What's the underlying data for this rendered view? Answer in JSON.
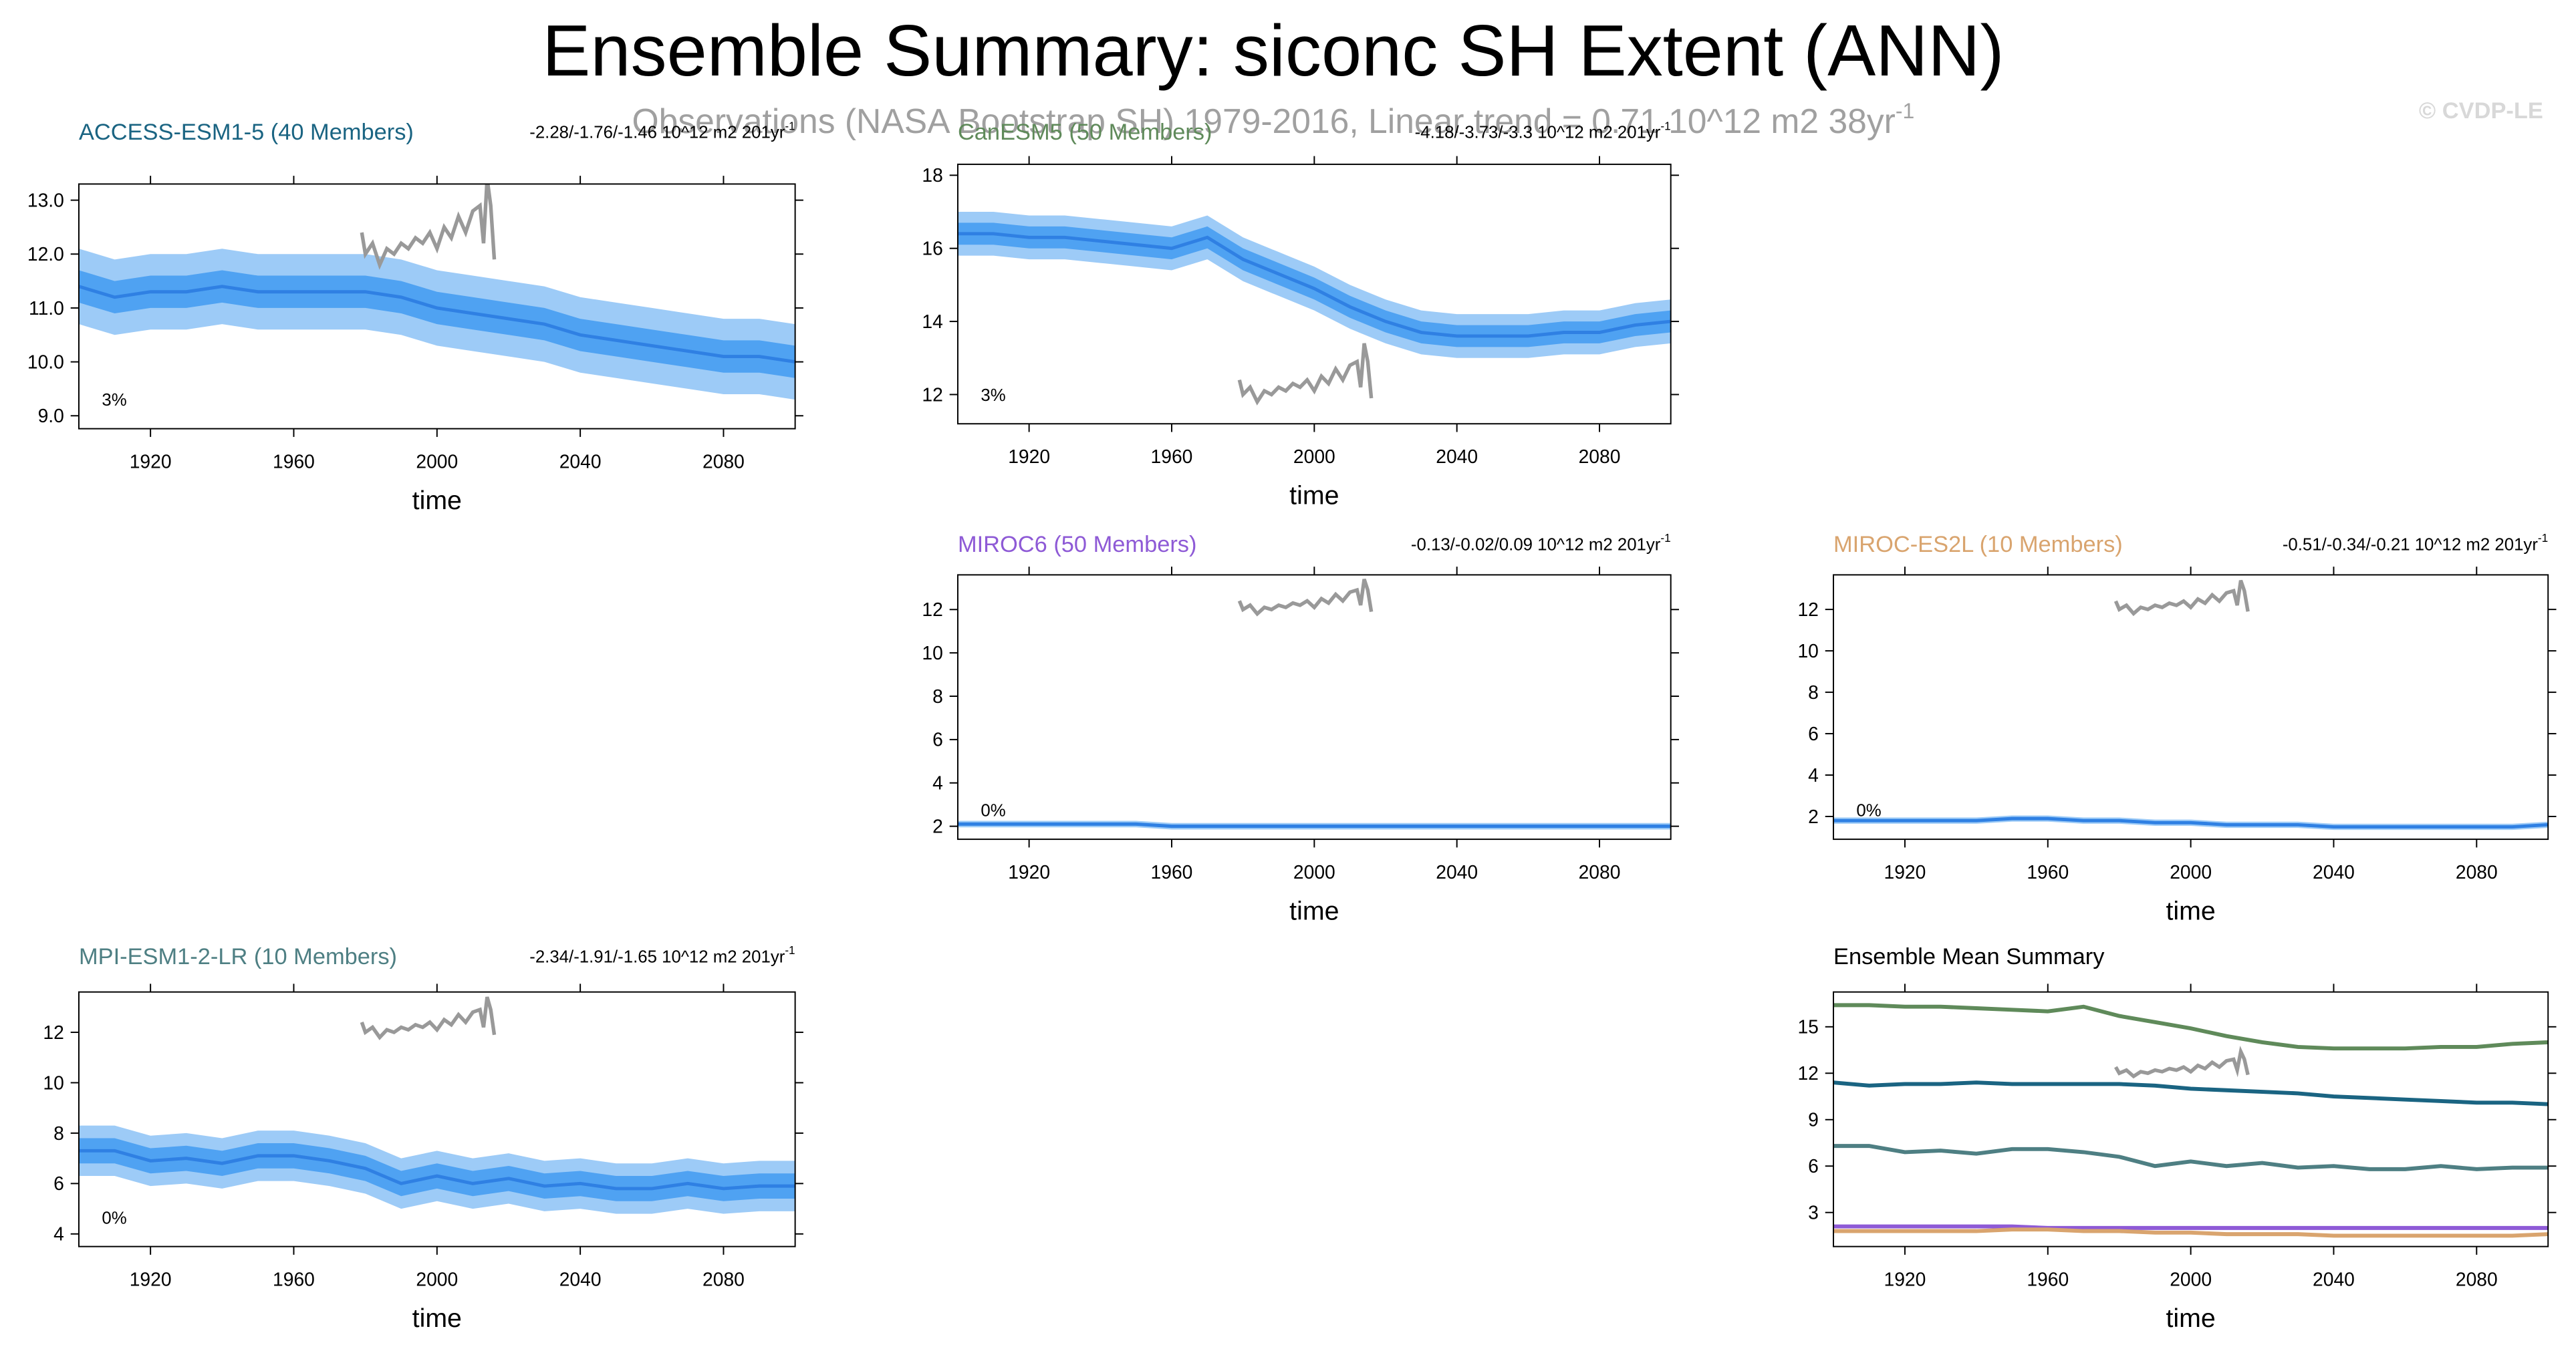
{
  "title": "Ensemble Summary: siconc SH Extent (ANN)",
  "subtitle": {
    "text": "Observations (NASA Bootstrap SH) 1979-2016, Linear trend = 0.71 10^12 m2 38yr",
    "sup": "-1"
  },
  "watermark": "© CVDP-LE",
  "observations": {
    "color": "#999999",
    "x": [
      1979,
      1980,
      1982,
      1984,
      1986,
      1988,
      1990,
      1992,
      1994,
      1996,
      1998,
      2000,
      2002,
      2004,
      2006,
      2008,
      2010,
      2012,
      2013,
      2014,
      2015,
      2016
    ],
    "values": [
      12.4,
      12.0,
      12.2,
      11.8,
      12.1,
      12.0,
      12.2,
      12.1,
      12.3,
      12.2,
      12.4,
      12.1,
      12.5,
      12.3,
      12.7,
      12.4,
      12.8,
      12.9,
      12.2,
      13.4,
      12.9,
      11.9
    ]
  },
  "band_colors": {
    "outer": "#9dcbf7",
    "inner": "#4fa2f2",
    "mean": "#2f80e3"
  },
  "chart_data": [
    {
      "type": "ensemble",
      "title": "ACCESS-ESM1-5 (40 Members)",
      "color": "#1a6482",
      "trend": {
        "text": "-2.28/-1.76/-1.46 10^12 m2 201yr",
        "sup": "-1"
      },
      "percent": "3%",
      "x_label": "time",
      "x": [
        1900,
        1910,
        1920,
        1930,
        1940,
        1950,
        1960,
        1970,
        1980,
        1990,
        2000,
        2010,
        2020,
        2030,
        2040,
        2050,
        2060,
        2070,
        2080,
        2090,
        2100
      ],
      "mean": [
        11.4,
        11.2,
        11.3,
        11.3,
        11.4,
        11.3,
        11.3,
        11.3,
        11.3,
        11.2,
        11.0,
        10.9,
        10.8,
        10.7,
        10.5,
        10.4,
        10.3,
        10.2,
        10.1,
        10.1,
        10.0
      ],
      "inner_lo": [
        11.1,
        10.9,
        11.0,
        11.0,
        11.1,
        11.0,
        11.0,
        11.0,
        11.0,
        10.9,
        10.7,
        10.6,
        10.5,
        10.4,
        10.2,
        10.1,
        10.0,
        9.9,
        9.8,
        9.8,
        9.7
      ],
      "inner_hi": [
        11.7,
        11.5,
        11.6,
        11.6,
        11.7,
        11.6,
        11.6,
        11.6,
        11.6,
        11.5,
        11.3,
        11.2,
        11.1,
        11.0,
        10.8,
        10.7,
        10.6,
        10.5,
        10.4,
        10.4,
        10.3
      ],
      "outer_lo": [
        10.7,
        10.5,
        10.6,
        10.6,
        10.7,
        10.6,
        10.6,
        10.6,
        10.6,
        10.5,
        10.3,
        10.2,
        10.1,
        10.0,
        9.8,
        9.7,
        9.6,
        9.5,
        9.4,
        9.4,
        9.3
      ],
      "outer_hi": [
        12.1,
        11.9,
        12.0,
        12.0,
        12.1,
        12.0,
        12.0,
        12.0,
        12.0,
        11.9,
        11.7,
        11.6,
        11.5,
        11.4,
        11.2,
        11.1,
        11.0,
        10.9,
        10.8,
        10.8,
        10.7
      ],
      "xlim": [
        1900,
        2100
      ],
      "xticks": [
        1920,
        1960,
        2000,
        2040,
        2080
      ],
      "ylim": [
        8.76,
        13.3
      ],
      "yticks": [
        {
          "value": 9,
          "label": "9.0"
        },
        {
          "value": 10,
          "label": "10.0"
        },
        {
          "value": 11,
          "label": "11.0"
        },
        {
          "value": 12,
          "label": "12.0"
        },
        {
          "value": 13,
          "label": "13.0"
        }
      ]
    },
    {
      "type": "ensemble",
      "title": "CanESM5 (50 Members)",
      "color": "#5f8a5a",
      "trend": {
        "text": "-4.18/-3.73/-3.3 10^12 m2 201yr",
        "sup": "-1"
      },
      "percent": "3%",
      "x_label": "time",
      "x": [
        1900,
        1910,
        1920,
        1930,
        1940,
        1950,
        1960,
        1970,
        1980,
        1990,
        2000,
        2010,
        2020,
        2030,
        2040,
        2050,
        2060,
        2070,
        2080,
        2090,
        2100
      ],
      "mean": [
        16.4,
        16.4,
        16.3,
        16.3,
        16.2,
        16.1,
        16.0,
        16.3,
        15.7,
        15.3,
        14.9,
        14.4,
        14.0,
        13.7,
        13.6,
        13.6,
        13.6,
        13.7,
        13.7,
        13.9,
        14.0
      ],
      "inner_lo": [
        16.1,
        16.1,
        16.0,
        16.0,
        15.9,
        15.8,
        15.7,
        16.0,
        15.4,
        15.0,
        14.6,
        14.1,
        13.7,
        13.4,
        13.3,
        13.3,
        13.3,
        13.4,
        13.4,
        13.6,
        13.7
      ],
      "inner_hi": [
        16.7,
        16.7,
        16.6,
        16.6,
        16.5,
        16.4,
        16.3,
        16.6,
        16.0,
        15.6,
        15.2,
        14.7,
        14.3,
        14.0,
        13.9,
        13.9,
        13.9,
        14.0,
        14.0,
        14.2,
        14.3
      ],
      "outer_lo": [
        15.8,
        15.8,
        15.7,
        15.7,
        15.6,
        15.5,
        15.4,
        15.7,
        15.1,
        14.7,
        14.3,
        13.8,
        13.4,
        13.1,
        13.0,
        13.0,
        13.0,
        13.1,
        13.1,
        13.3,
        13.4
      ],
      "outer_hi": [
        17.0,
        17.0,
        16.9,
        16.9,
        16.8,
        16.7,
        16.6,
        16.9,
        16.3,
        15.9,
        15.5,
        15.0,
        14.6,
        14.3,
        14.2,
        14.2,
        14.2,
        14.3,
        14.3,
        14.5,
        14.6
      ],
      "xlim": [
        1900,
        2100
      ],
      "xticks": [
        1920,
        1960,
        2000,
        2040,
        2080
      ],
      "ylim": [
        11.2,
        18.3
      ],
      "yticks": [
        12,
        14,
        16,
        18
      ]
    },
    {
      "type": "ensemble",
      "title": "MIROC6 (50 Members)",
      "color": "#8e5ad6",
      "trend": {
        "text": "-0.13/-0.02/0.09 10^12 m2 201yr",
        "sup": "-1"
      },
      "percent": "0%",
      "x_label": "time",
      "x": [
        1900,
        1910,
        1920,
        1930,
        1940,
        1950,
        1960,
        1970,
        1980,
        1990,
        2000,
        2010,
        2020,
        2030,
        2040,
        2050,
        2060,
        2070,
        2080,
        2090,
        2100
      ],
      "mean": [
        2.1,
        2.1,
        2.1,
        2.1,
        2.1,
        2.1,
        2.0,
        2.0,
        2.0,
        2.0,
        2.0,
        2.0,
        2.0,
        2.0,
        2.0,
        2.0,
        2.0,
        2.0,
        2.0,
        2.0,
        2.0
      ],
      "inner_lo": [
        2.05,
        2.05,
        2.05,
        2.05,
        2.05,
        2.05,
        1.95,
        1.95,
        1.95,
        1.95,
        1.95,
        1.95,
        1.95,
        1.95,
        1.95,
        1.95,
        1.95,
        1.95,
        1.95,
        1.95,
        1.95
      ],
      "inner_hi": [
        2.15,
        2.15,
        2.15,
        2.15,
        2.15,
        2.15,
        2.05,
        2.05,
        2.05,
        2.05,
        2.05,
        2.05,
        2.05,
        2.05,
        2.05,
        2.05,
        2.05,
        2.05,
        2.05,
        2.05,
        2.05
      ],
      "outer_lo": [
        1.95,
        1.95,
        1.95,
        1.95,
        1.95,
        1.95,
        1.85,
        1.85,
        1.85,
        1.85,
        1.85,
        1.85,
        1.85,
        1.85,
        1.85,
        1.85,
        1.85,
        1.85,
        1.85,
        1.85,
        1.85
      ],
      "outer_hi": [
        2.25,
        2.25,
        2.25,
        2.25,
        2.25,
        2.25,
        2.15,
        2.15,
        2.15,
        2.15,
        2.15,
        2.15,
        2.15,
        2.15,
        2.15,
        2.15,
        2.15,
        2.15,
        2.15,
        2.15,
        2.15
      ],
      "xlim": [
        1900,
        2100
      ],
      "xticks": [
        1920,
        1960,
        2000,
        2040,
        2080
      ],
      "ylim": [
        1.4,
        13.6
      ],
      "yticks": [
        2,
        4,
        6,
        8,
        10,
        12
      ]
    },
    {
      "type": "ensemble",
      "title": "MIROC-ES2L (10 Members)",
      "color": "#d9a46e",
      "trend": {
        "text": "-0.51/-0.34/-0.21 10^12 m2 201yr",
        "sup": "-1"
      },
      "percent": "0%",
      "x_label": "time",
      "x": [
        1900,
        1910,
        1920,
        1930,
        1940,
        1950,
        1960,
        1970,
        1980,
        1990,
        2000,
        2010,
        2020,
        2030,
        2040,
        2050,
        2060,
        2070,
        2080,
        2090,
        2100
      ],
      "mean": [
        1.8,
        1.8,
        1.8,
        1.8,
        1.8,
        1.9,
        1.9,
        1.8,
        1.8,
        1.7,
        1.7,
        1.6,
        1.6,
        1.6,
        1.5,
        1.5,
        1.5,
        1.5,
        1.5,
        1.5,
        1.6
      ],
      "inner_lo": [
        1.75,
        1.75,
        1.75,
        1.75,
        1.75,
        1.85,
        1.85,
        1.75,
        1.75,
        1.65,
        1.65,
        1.55,
        1.55,
        1.55,
        1.45,
        1.45,
        1.45,
        1.45,
        1.45,
        1.45,
        1.55
      ],
      "inner_hi": [
        1.85,
        1.85,
        1.85,
        1.85,
        1.85,
        1.95,
        1.95,
        1.85,
        1.85,
        1.75,
        1.75,
        1.65,
        1.65,
        1.65,
        1.55,
        1.55,
        1.55,
        1.55,
        1.55,
        1.55,
        1.65
      ],
      "outer_lo": [
        1.65,
        1.65,
        1.65,
        1.65,
        1.65,
        1.75,
        1.75,
        1.65,
        1.65,
        1.55,
        1.55,
        1.45,
        1.45,
        1.45,
        1.35,
        1.35,
        1.35,
        1.35,
        1.35,
        1.35,
        1.45
      ],
      "outer_hi": [
        1.95,
        1.95,
        1.95,
        1.95,
        1.95,
        2.05,
        2.05,
        1.95,
        1.95,
        1.85,
        1.85,
        1.75,
        1.75,
        1.75,
        1.65,
        1.65,
        1.65,
        1.65,
        1.65,
        1.65,
        1.75
      ],
      "xlim": [
        1900,
        2100
      ],
      "xticks": [
        1920,
        1960,
        2000,
        2040,
        2080
      ],
      "ylim": [
        0.9,
        13.67
      ],
      "yticks": [
        2,
        4,
        6,
        8,
        10,
        12
      ]
    },
    {
      "type": "ensemble",
      "title": "MPI-ESM1-2-LR (10 Members)",
      "color": "#4e7f83",
      "trend": {
        "text": "-2.34/-1.91/-1.65 10^12 m2 201yr",
        "sup": "-1"
      },
      "percent": "0%",
      "x_label": "time",
      "x": [
        1900,
        1910,
        1920,
        1930,
        1940,
        1950,
        1960,
        1970,
        1980,
        1990,
        2000,
        2010,
        2020,
        2030,
        2040,
        2050,
        2060,
        2070,
        2080,
        2090,
        2100
      ],
      "mean": [
        7.3,
        7.3,
        6.9,
        7.0,
        6.8,
        7.1,
        7.1,
        6.9,
        6.6,
        6.0,
        6.3,
        6.0,
        6.2,
        5.9,
        6.0,
        5.8,
        5.8,
        6.0,
        5.8,
        5.9,
        5.9
      ],
      "inner_lo": [
        6.8,
        6.8,
        6.4,
        6.5,
        6.3,
        6.6,
        6.6,
        6.4,
        6.1,
        5.5,
        5.8,
        5.5,
        5.7,
        5.4,
        5.5,
        5.3,
        5.3,
        5.5,
        5.3,
        5.4,
        5.4
      ],
      "inner_hi": [
        7.8,
        7.8,
        7.4,
        7.5,
        7.3,
        7.6,
        7.6,
        7.4,
        7.1,
        6.5,
        6.8,
        6.5,
        6.7,
        6.4,
        6.5,
        6.3,
        6.3,
        6.5,
        6.3,
        6.4,
        6.4
      ],
      "outer_lo": [
        6.3,
        6.3,
        5.9,
        6.0,
        5.8,
        6.1,
        6.1,
        5.9,
        5.6,
        5.0,
        5.3,
        5.0,
        5.2,
        4.9,
        5.0,
        4.8,
        4.8,
        5.0,
        4.8,
        4.9,
        4.9
      ],
      "outer_hi": [
        8.3,
        8.3,
        7.9,
        8.0,
        7.8,
        8.1,
        8.1,
        7.9,
        7.6,
        7.0,
        7.3,
        7.0,
        7.2,
        6.9,
        7.0,
        6.8,
        6.8,
        7.0,
        6.8,
        6.9,
        6.9
      ],
      "xlim": [
        1900,
        2100
      ],
      "xticks": [
        1920,
        1960,
        2000,
        2040,
        2080
      ],
      "ylim": [
        3.5,
        13.6
      ],
      "yticks": [
        4,
        6,
        8,
        10,
        12
      ]
    },
    {
      "type": "summary",
      "title": "Ensemble Mean Summary",
      "x_label": "time",
      "xlim": [
        1900,
        2100
      ],
      "xticks": [
        1920,
        1960,
        2000,
        2040,
        2080
      ],
      "ylim": [
        0.8,
        17.25
      ],
      "yticks": [
        3,
        6,
        9,
        12,
        15
      ]
    }
  ]
}
